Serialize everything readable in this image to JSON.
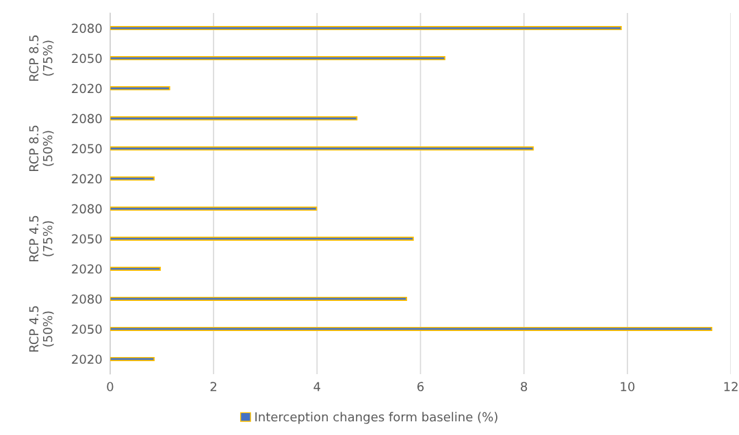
{
  "chart_data": {
    "type": "bar",
    "orientation": "horizontal",
    "categories": [
      "2080",
      "2050",
      "2020",
      "2080",
      "2050",
      "2020",
      "2080",
      "2050",
      "2020",
      "2080",
      "2050",
      "2020"
    ],
    "series": [
      {
        "name": "Interception changes form baseline (%)",
        "color": "#4472c4",
        "values": [
          9.88,
          6.47,
          1.15,
          4.77,
          8.18,
          0.85,
          3.99,
          5.86,
          0.97,
          5.73,
          11.63,
          0.85
        ]
      }
    ],
    "annotations": [
      "RCP 8.5\n(75%)",
      "RCP 8.5\n(50%)",
      "RCP 4.5\n(75%)",
      "RCP 4.5\n(50%)"
    ],
    "xlim": [
      0,
      12
    ],
    "xticks": [
      0,
      2,
      4,
      6,
      8,
      10,
      12
    ],
    "grid": "x",
    "legend": "bottom"
  }
}
